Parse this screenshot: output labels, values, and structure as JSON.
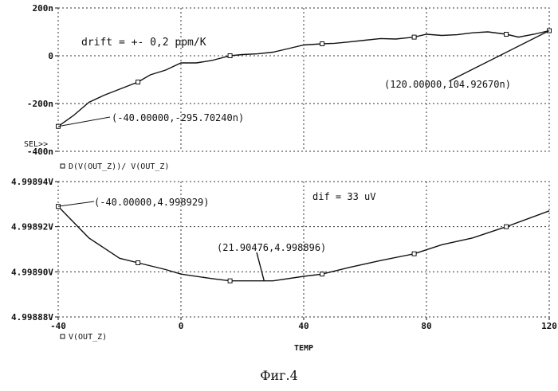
{
  "caption": "Фиг.4",
  "chart_data": [
    {
      "type": "line",
      "trace_label": "D(V(OUT_Z))/ V(OUT_Z)",
      "sel_label": "SEL>>",
      "ylim": [
        -400,
        200
      ],
      "yticks": [
        {
          "value": 200,
          "label": "200n"
        },
        {
          "value": 0,
          "label": "0"
        },
        {
          "value": -200,
          "label": "-200n"
        },
        {
          "value": -400,
          "label": "-400n"
        }
      ],
      "x": [
        -40,
        -35,
        -30,
        -25,
        -20,
        -14,
        -10,
        -5,
        0,
        5,
        10,
        16,
        20,
        25,
        30,
        35,
        40,
        46,
        50,
        55,
        60,
        65,
        70,
        76,
        80,
        85,
        90,
        95,
        100,
        106,
        110,
        115,
        120
      ],
      "values": [
        -295.7,
        -250,
        -195,
        -165,
        -140,
        -110,
        -80,
        -60,
        -30,
        -30,
        -20,
        0,
        5,
        8,
        15,
        30,
        45,
        50,
        52,
        58,
        65,
        72,
        70,
        78,
        90,
        85,
        88,
        96,
        100,
        90,
        78,
        90,
        104.9
      ],
      "marker_x": [
        -40,
        -14,
        16,
        46,
        76,
        106,
        120
      ],
      "annotations": [
        {
          "text": "drift = +- 0,2 ppm/K"
        },
        {
          "text": "(-40.00000,-295.70240n)",
          "x": -40,
          "y": -295.7
        },
        {
          "text": "(120.00000,104.92670n)",
          "x": 120,
          "y": 104.9
        }
      ]
    },
    {
      "type": "line",
      "trace_label": "V(OUT_Z)",
      "xlabel": "TEMP",
      "xlim": [
        -40,
        120
      ],
      "xticks": [
        {
          "value": -40,
          "label": "-40"
        },
        {
          "value": 0,
          "label": "0"
        },
        {
          "value": 40,
          "label": "40"
        },
        {
          "value": 80,
          "label": "80"
        },
        {
          "value": 120,
          "label": "120"
        }
      ],
      "ylim": [
        4.99888,
        4.99894
      ],
      "yticks": [
        {
          "value": 4.99894,
          "label": "4.99894V"
        },
        {
          "value": 4.99892,
          "label": "4.99892V"
        },
        {
          "value": 4.9989,
          "label": "4.99890V"
        },
        {
          "value": 4.99888,
          "label": "4.99888V"
        }
      ],
      "x": [
        -40,
        -30,
        -20,
        -14,
        -5,
        0,
        10,
        16,
        21.9,
        30,
        40,
        46,
        55,
        65,
        76,
        85,
        95,
        106,
        120
      ],
      "values": [
        4.998929,
        4.998915,
        4.998906,
        4.998904,
        4.998901,
        4.998899,
        4.998897,
        4.998896,
        4.998896,
        4.998896,
        4.998898,
        4.998899,
        4.998902,
        4.998905,
        4.998908,
        4.998912,
        4.998915,
        4.99892,
        4.998927
      ],
      "marker_x": [
        -40,
        -14,
        16,
        46,
        76,
        106
      ],
      "annotations": [
        {
          "text": "dif = 33 uV"
        },
        {
          "text": "(-40.00000,4.998929)",
          "x": -40,
          "y": 4.998929
        },
        {
          "text": "(21.90476,4.998896)",
          "x": 21.9,
          "y": 4.998896
        }
      ]
    }
  ]
}
